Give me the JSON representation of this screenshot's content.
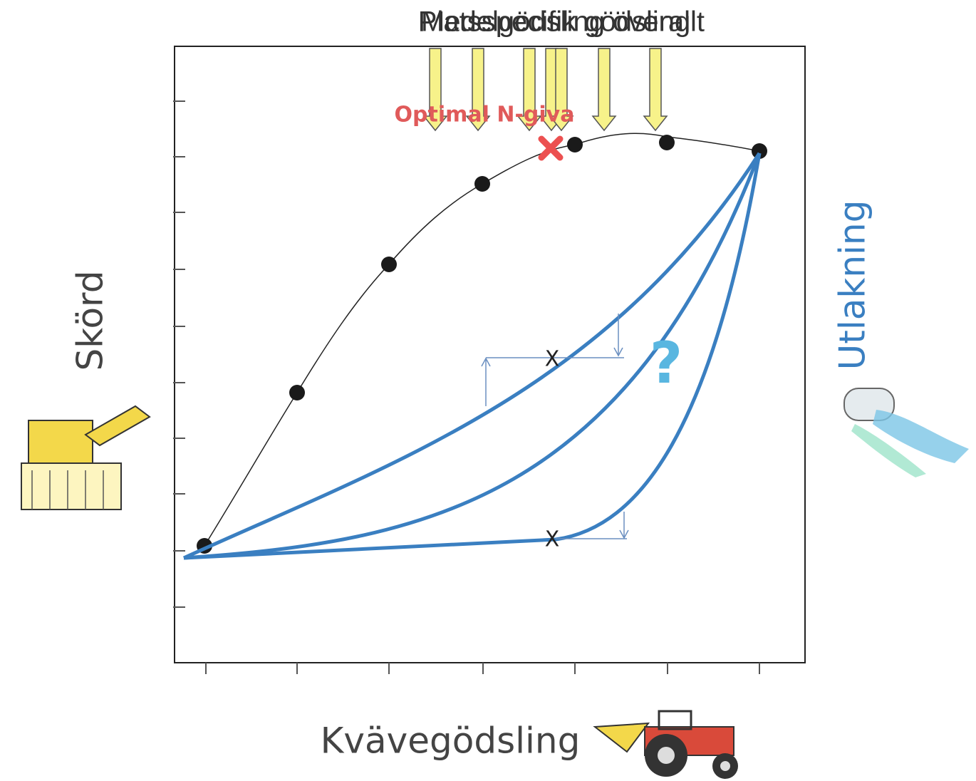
{
  "header": {
    "labels": [
      "Platsspecifik gödsling",
      "Medelgödsling överallt"
    ]
  },
  "annotation": "Optimal N-giva",
  "y_label": "Skörd",
  "y2_label": "Utlakning",
  "x_label": "Kvävegödsling",
  "question": "?",
  "markers": [
    "X",
    "X"
  ]
}
